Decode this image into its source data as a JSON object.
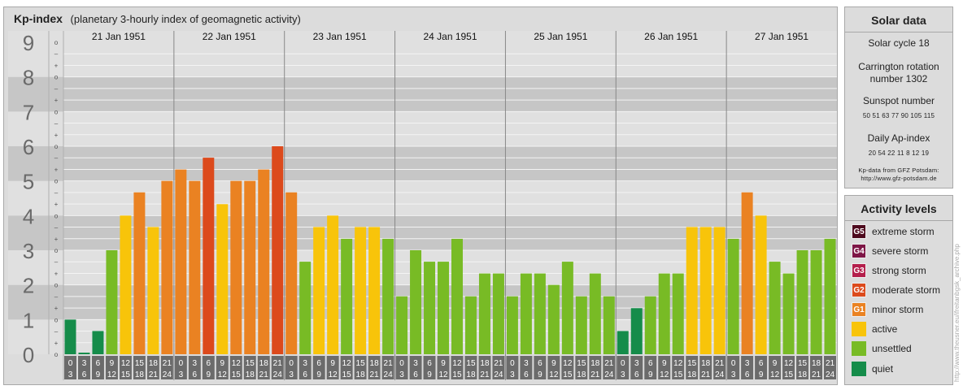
{
  "header": {
    "title": "Kp-index",
    "subtitle": "(planetary 3-hourly index of geomagnetic activity)"
  },
  "chart_data": {
    "type": "bar",
    "title": "Kp-index",
    "ylim": [
      0,
      9
    ],
    "y_ticks": [
      "0",
      "1",
      "2",
      "3",
      "4",
      "5",
      "6",
      "7",
      "8",
      "9"
    ],
    "minor_ticks": [
      "o",
      "+",
      "-"
    ],
    "days": [
      "21 Jan 1951",
      "22 Jan 1951",
      "23 Jan 1951",
      "24 Jan 1951",
      "25 Jan 1951",
      "26 Jan 1951",
      "27 Jan 1951"
    ],
    "interval_start": [
      "0",
      "3",
      "6",
      "9",
      "12",
      "15",
      "18",
      "21"
    ],
    "interval_end": [
      "3",
      "6",
      "9",
      "12",
      "15",
      "18",
      "21",
      "24"
    ],
    "values": [
      [
        1.0,
        0.0,
        0.67,
        3.0,
        4.0,
        4.67,
        3.67,
        5.0
      ],
      [
        5.33,
        5.0,
        5.67,
        4.33,
        5.0,
        5.0,
        5.33,
        6.0
      ],
      [
        4.67,
        2.67,
        3.67,
        4.0,
        3.33,
        3.67,
        3.67,
        3.33
      ],
      [
        1.67,
        3.0,
        2.67,
        2.67,
        3.33,
        1.67,
        2.33,
        2.33
      ],
      [
        1.67,
        2.33,
        2.33,
        2.0,
        2.67,
        1.67,
        2.33,
        1.67
      ],
      [
        0.67,
        1.33,
        1.67,
        2.33,
        2.33,
        3.67,
        3.67,
        3.67
      ],
      [
        3.33,
        4.67,
        4.0,
        2.67,
        2.33,
        3.0,
        3.0,
        3.33
      ]
    ],
    "colors": {
      "quiet": "#158c4a",
      "unsettled": "#78bb25",
      "active": "#f8c40a",
      "minor": "#ea8222",
      "moderate": "#dc4a1c",
      "strong": "#b41e4b",
      "severe": "#7e1646",
      "extreme": "#4e0a1e"
    }
  },
  "solar": {
    "title": "Solar data",
    "cycle": "Solar cycle 18",
    "carrington_line1": "Carrington rotation",
    "carrington_line2": "number 1302",
    "sunspot_label": "Sunspot number",
    "sunspot_values": "50   51   63   77   90   105  115",
    "ap_label": "Daily Ap-index",
    "ap_values": "20   54   22   11    8    12   19",
    "source_line1": "Kp-data from GFZ Potsdam:",
    "source_line2": "http://www.gfz-potsdam.de"
  },
  "levels": {
    "title": "Activity levels",
    "items": [
      {
        "badge": "G5",
        "label": "extreme storm",
        "color": "#4e0a1e"
      },
      {
        "badge": "G4",
        "label": "severe storm",
        "color": "#7e1646"
      },
      {
        "badge": "G3",
        "label": "strong storm",
        "color": "#b41e4b"
      },
      {
        "badge": "G2",
        "label": "moderate storm",
        "color": "#dc4a1c"
      },
      {
        "badge": "G1",
        "label": "minor storm",
        "color": "#ea8222"
      },
      {
        "badge": "",
        "label": "active",
        "color": "#f8c40a"
      },
      {
        "badge": "",
        "label": "unsettled",
        "color": "#78bb25"
      },
      {
        "badge": "",
        "label": "quiet",
        "color": "#158c4a"
      }
    ]
  },
  "credit": "http://www.theusner.eu/ifreitanbgsk_archive.php"
}
